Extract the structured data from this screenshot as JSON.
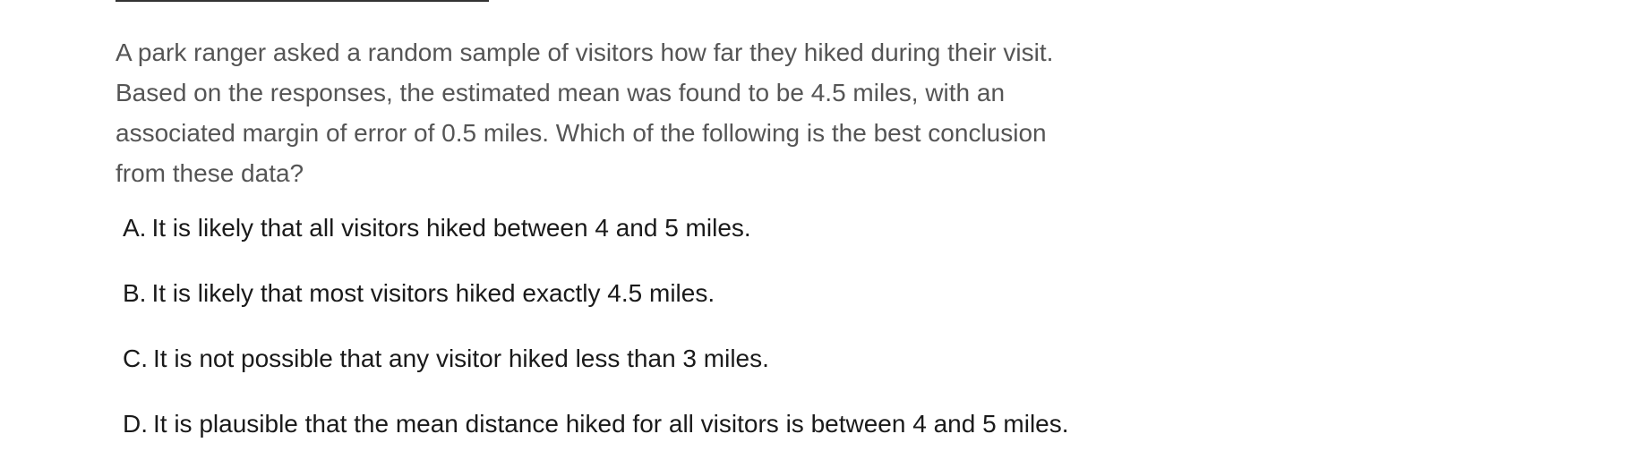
{
  "question": {
    "text": "A park ranger asked a random sample of visitors how far they hiked during their visit. Based on the responses, the estimated mean was found to be 4.5 miles, with an associated margin of error of 0.5 miles. Which of the following is the best conclusion from these data?"
  },
  "choices": [
    {
      "letter": "A.",
      "text": "It is likely that all visitors hiked between 4 and 5 miles."
    },
    {
      "letter": "B.",
      "text": "It is likely that most visitors hiked exactly 4.5 miles."
    },
    {
      "letter": "C.",
      "text": "It is not possible that any visitor hiked less than 3 miles."
    },
    {
      "letter": "D.",
      "text": "It is plausible that the mean distance hiked for all visitors is between 4 and 5 miles."
    }
  ]
}
